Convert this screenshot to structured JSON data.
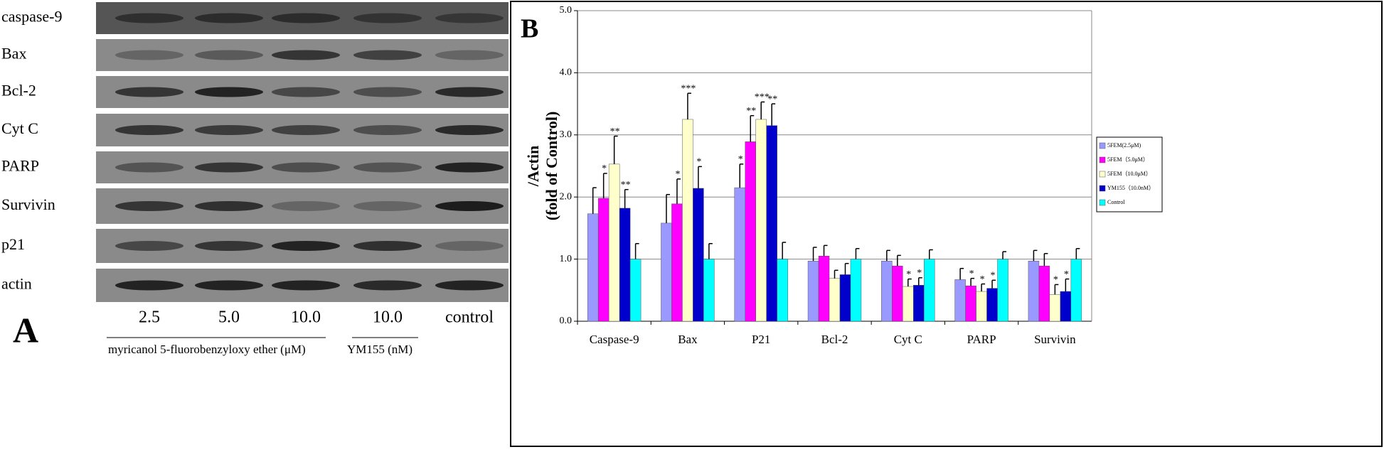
{
  "panel_a": {
    "label": "A",
    "rows": [
      "caspase-9",
      "Bax",
      "Bcl-2",
      "Cyt C",
      "PARP",
      "Survivin",
      "p21",
      "actin"
    ],
    "lanes": [
      "2.5",
      "5.0",
      "10.0",
      "10.0",
      "control"
    ],
    "groups": [
      "myricanol 5-fluorobenzyloxy ether (μM)",
      "YM155 (nM)"
    ]
  },
  "chart_data": {
    "type": "bar",
    "panel_label": "B",
    "ylabel": [
      "/Actin",
      "(fold of Control)"
    ],
    "categories": [
      "Caspase-9",
      "Bax",
      "P21",
      "Bcl-2",
      "Cyt C",
      "PARP",
      "Survivin"
    ],
    "series": [
      {
        "name": "5FEM(2.5μM)",
        "color": "#9999ff",
        "values": [
          1.73,
          1.58,
          2.15,
          0.97,
          0.97,
          0.67,
          0.97
        ],
        "errors": [
          0.42,
          0.46,
          0.38,
          0.22,
          0.17,
          0.18,
          0.17
        ],
        "significance": [
          null,
          null,
          "*",
          null,
          null,
          null,
          null
        ]
      },
      {
        "name": "5FEM（5.0μM）",
        "color": "#ff00ff",
        "values": [
          1.98,
          1.89,
          2.89,
          1.05,
          0.89,
          0.57,
          0.89
        ],
        "errors": [
          0.4,
          0.4,
          0.42,
          0.17,
          0.17,
          0.12,
          0.2
        ],
        "significance": [
          "*",
          "*",
          "**",
          null,
          null,
          "*",
          null
        ]
      },
      {
        "name": "5FEM（10.0μM）",
        "color": "#ffffcc",
        "values": [
          2.53,
          3.25,
          3.25,
          0.69,
          0.56,
          0.48,
          0.43
        ],
        "errors": [
          0.45,
          0.42,
          0.28,
          0.13,
          0.12,
          0.12,
          0.16
        ],
        "significance": [
          "**",
          "***",
          "***",
          null,
          "*",
          "*",
          "*"
        ]
      },
      {
        "name": "YM155（10.0nM）",
        "color": "#0000cc",
        "values": [
          1.82,
          2.14,
          3.15,
          0.75,
          0.58,
          0.53,
          0.48
        ],
        "errors": [
          0.3,
          0.35,
          0.35,
          0.18,
          0.12,
          0.13,
          0.2
        ],
        "significance": [
          "**",
          "*",
          "**",
          null,
          "*",
          "*",
          "*"
        ]
      },
      {
        "name": "Control",
        "color": "#00ffff",
        "values": [
          1.0,
          1.0,
          1.0,
          1.0,
          1.0,
          1.0,
          1.0
        ],
        "errors": [
          0.25,
          0.25,
          0.27,
          0.17,
          0.15,
          0.12,
          0.17
        ],
        "significance": [
          null,
          null,
          null,
          null,
          null,
          null,
          null
        ]
      }
    ],
    "ylim": [
      0,
      5
    ],
    "yticks": [
      {
        "value": 0,
        "label": "0.0"
      },
      {
        "value": 1,
        "label": "1.0"
      },
      {
        "value": 2,
        "label": "2.0"
      },
      {
        "value": 3,
        "label": "3.0"
      },
      {
        "value": 4,
        "label": "4.0"
      },
      {
        "value": 5,
        "label": "5.0"
      }
    ],
    "grid": true,
    "legend": "right"
  }
}
